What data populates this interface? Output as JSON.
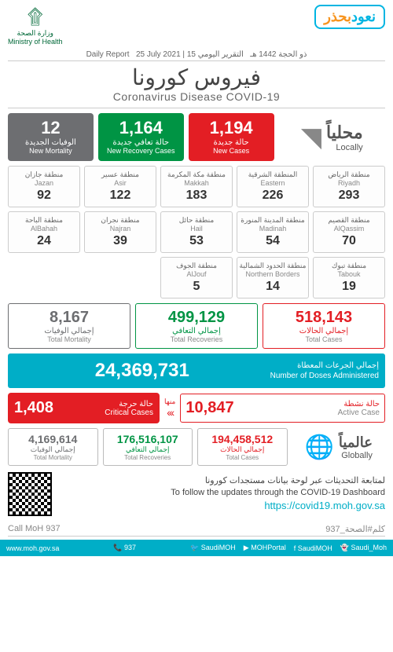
{
  "header": {
    "ministry_ar": "وزارة الصحة",
    "ministry_en": "Ministry of Health",
    "slogan_main": "نعود",
    "slogan_accent": "بحذر"
  },
  "date": {
    "label_ar": "التقرير اليومي",
    "hijri": "15 ذو الحجة 1442 هـ",
    "gregorian": "25 July 2021",
    "label_en": "Daily Report"
  },
  "title": {
    "ar": "فيروس كورونا",
    "en": "Coronavirus Disease COVID-19"
  },
  "hero": [
    {
      "num": "1,194",
      "ar": "حالة جديدة",
      "en": "New Cases",
      "bg": "#e31e24"
    },
    {
      "num": "1,164",
      "ar": "حالة تعافي جديدة",
      "en": "New Recovery Cases",
      "bg": "#009444"
    },
    {
      "num": "12",
      "ar": "الوفيات الجديدة",
      "en": "New Mortality",
      "bg": "#6d6e71"
    }
  ],
  "locally": {
    "ar": "محلياً",
    "en": "Locally"
  },
  "regions": [
    {
      "ar": "منطقة الرياض",
      "en": "Riyadh",
      "num": "293"
    },
    {
      "ar": "المنطقة الشرقية",
      "en": "Eastern",
      "num": "226"
    },
    {
      "ar": "منطقة مكة المكرمة",
      "en": "Makkah",
      "num": "183"
    },
    {
      "ar": "منطقة عسير",
      "en": "Asir",
      "num": "122"
    },
    {
      "ar": "منطقة جازان",
      "en": "Jazan",
      "num": "92"
    },
    {
      "ar": "منطقة القصيم",
      "en": "AlQassim",
      "num": "70"
    },
    {
      "ar": "منطقة المدينة المنورة",
      "en": "Madinah",
      "num": "54"
    },
    {
      "ar": "منطقة حائل",
      "en": "Hail",
      "num": "53"
    },
    {
      "ar": "منطقة نجران",
      "en": "Najran",
      "num": "39"
    },
    {
      "ar": "منطقة الباحة",
      "en": "AlBahah",
      "num": "24"
    },
    {
      "ar": "منطقة تبوك",
      "en": "Tabouk",
      "num": "19"
    },
    {
      "ar": "منطقة الحدود الشمالية",
      "en": "Northern Borders",
      "num": "14"
    },
    {
      "ar": "منطقة الجوف",
      "en": "AlJouf",
      "num": "5"
    }
  ],
  "totals": [
    {
      "num": "518,143",
      "ar": "إجمالي الحالات",
      "en": "Total Cases",
      "color": "#e31e24"
    },
    {
      "num": "499,129",
      "ar": "إجمالي التعافي",
      "en": "Total Recoveries",
      "color": "#009444"
    },
    {
      "num": "8,167",
      "ar": "إجمالي الوفيات",
      "en": "Total Mortality",
      "color": "#6d6e71"
    }
  ],
  "doses": {
    "num": "24,369,731",
    "ar": "إجمالي الجرعات المعطاة",
    "en": "Number of Doses Administered"
  },
  "active": {
    "cases": {
      "num": "10,847",
      "ar": "حالة نشطة",
      "en": "Active Case",
      "color": "#e31e24"
    },
    "of_which": "منها",
    "arrows": "‹‹‹",
    "critical": {
      "num": "1,408",
      "ar": "حالة حرجة",
      "en": "Critical Cases",
      "bg": "#e31e24"
    }
  },
  "globally": {
    "ar": "عالمياً",
    "en": "Globally"
  },
  "global": [
    {
      "num": "194,458,512",
      "ar": "إجمالي الحالات",
      "en": "Total Cases",
      "color": "#e31e24"
    },
    {
      "num": "176,516,107",
      "ar": "إجمالي التعافي",
      "en": "Total Recoveries",
      "color": "#009444"
    },
    {
      "num": "4,169,614",
      "ar": "إجمالي الوفيات",
      "en": "Total Mortality",
      "color": "#6d6e71"
    }
  ],
  "dashboard": {
    "ar": "لمتابعة التحديثات عبر لوحة بيانات مستجدات كورونا",
    "en": "To follow the updates through the COVID-19 Dashboard",
    "url": "https://covid19.moh.gov.sa"
  },
  "footer1": {
    "left": "Call MoH 937",
    "right": "كلم#الصحة_937"
  },
  "footer2": {
    "site": "www.moh.gov.sa",
    "phone": "937",
    "social": [
      {
        "icon": "🐦",
        "handle": "SaudiMOH"
      },
      {
        "icon": "▶",
        "handle": "MOHPortal"
      },
      {
        "icon": "f",
        "handle": "SaudiMOH"
      },
      {
        "icon": "👻",
        "handle": "Saudi_Moh"
      }
    ]
  }
}
